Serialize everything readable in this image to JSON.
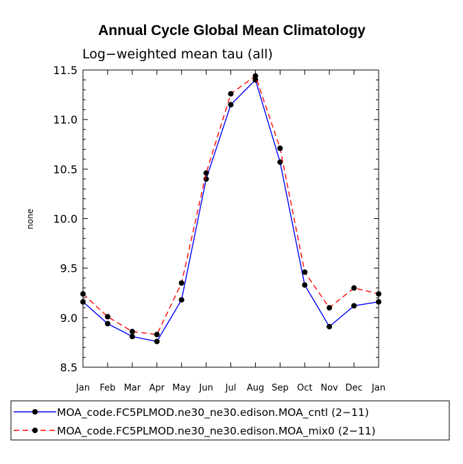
{
  "chart_data": {
    "type": "line",
    "title": "Annual Cycle Global Mean Climatology",
    "subtitle": "Log−weighted mean tau (all)",
    "xlabel": "",
    "ylabel": "none",
    "categories": [
      "Jan",
      "Feb",
      "Mar",
      "Apr",
      "May",
      "Jun",
      "Jul",
      "Aug",
      "Sep",
      "Oct",
      "Nov",
      "Dec",
      "Jan"
    ],
    "ylim": [
      8.5,
      11.5
    ],
    "yticks": [
      "8.5",
      "9.0",
      "9.5",
      "10.0",
      "10.5",
      "11.0",
      "11.5"
    ],
    "ytick_values": [
      8.5,
      9.0,
      9.5,
      10.0,
      10.5,
      11.0,
      11.5
    ],
    "series": [
      {
        "name": "MOA_code.FC5PLMOD.ne30_ne30.edison.MOA_cntl (2−11)",
        "color": "#0000ff",
        "dash": "solid",
        "values": [
          9.16,
          8.94,
          8.81,
          8.76,
          9.18,
          10.4,
          11.15,
          11.4,
          10.57,
          9.33,
          8.91,
          9.12,
          9.16
        ]
      },
      {
        "name": "MOA_code.FC5PLMOD.ne30_ne30.edison.MOA_mix0 (2−11)",
        "color": "#ff0000",
        "dash": "dashed",
        "values": [
          9.24,
          9.01,
          8.86,
          8.83,
          9.35,
          10.46,
          11.26,
          11.44,
          10.71,
          9.46,
          9.1,
          9.3,
          9.24
        ]
      }
    ],
    "legend_position": "bottom"
  }
}
